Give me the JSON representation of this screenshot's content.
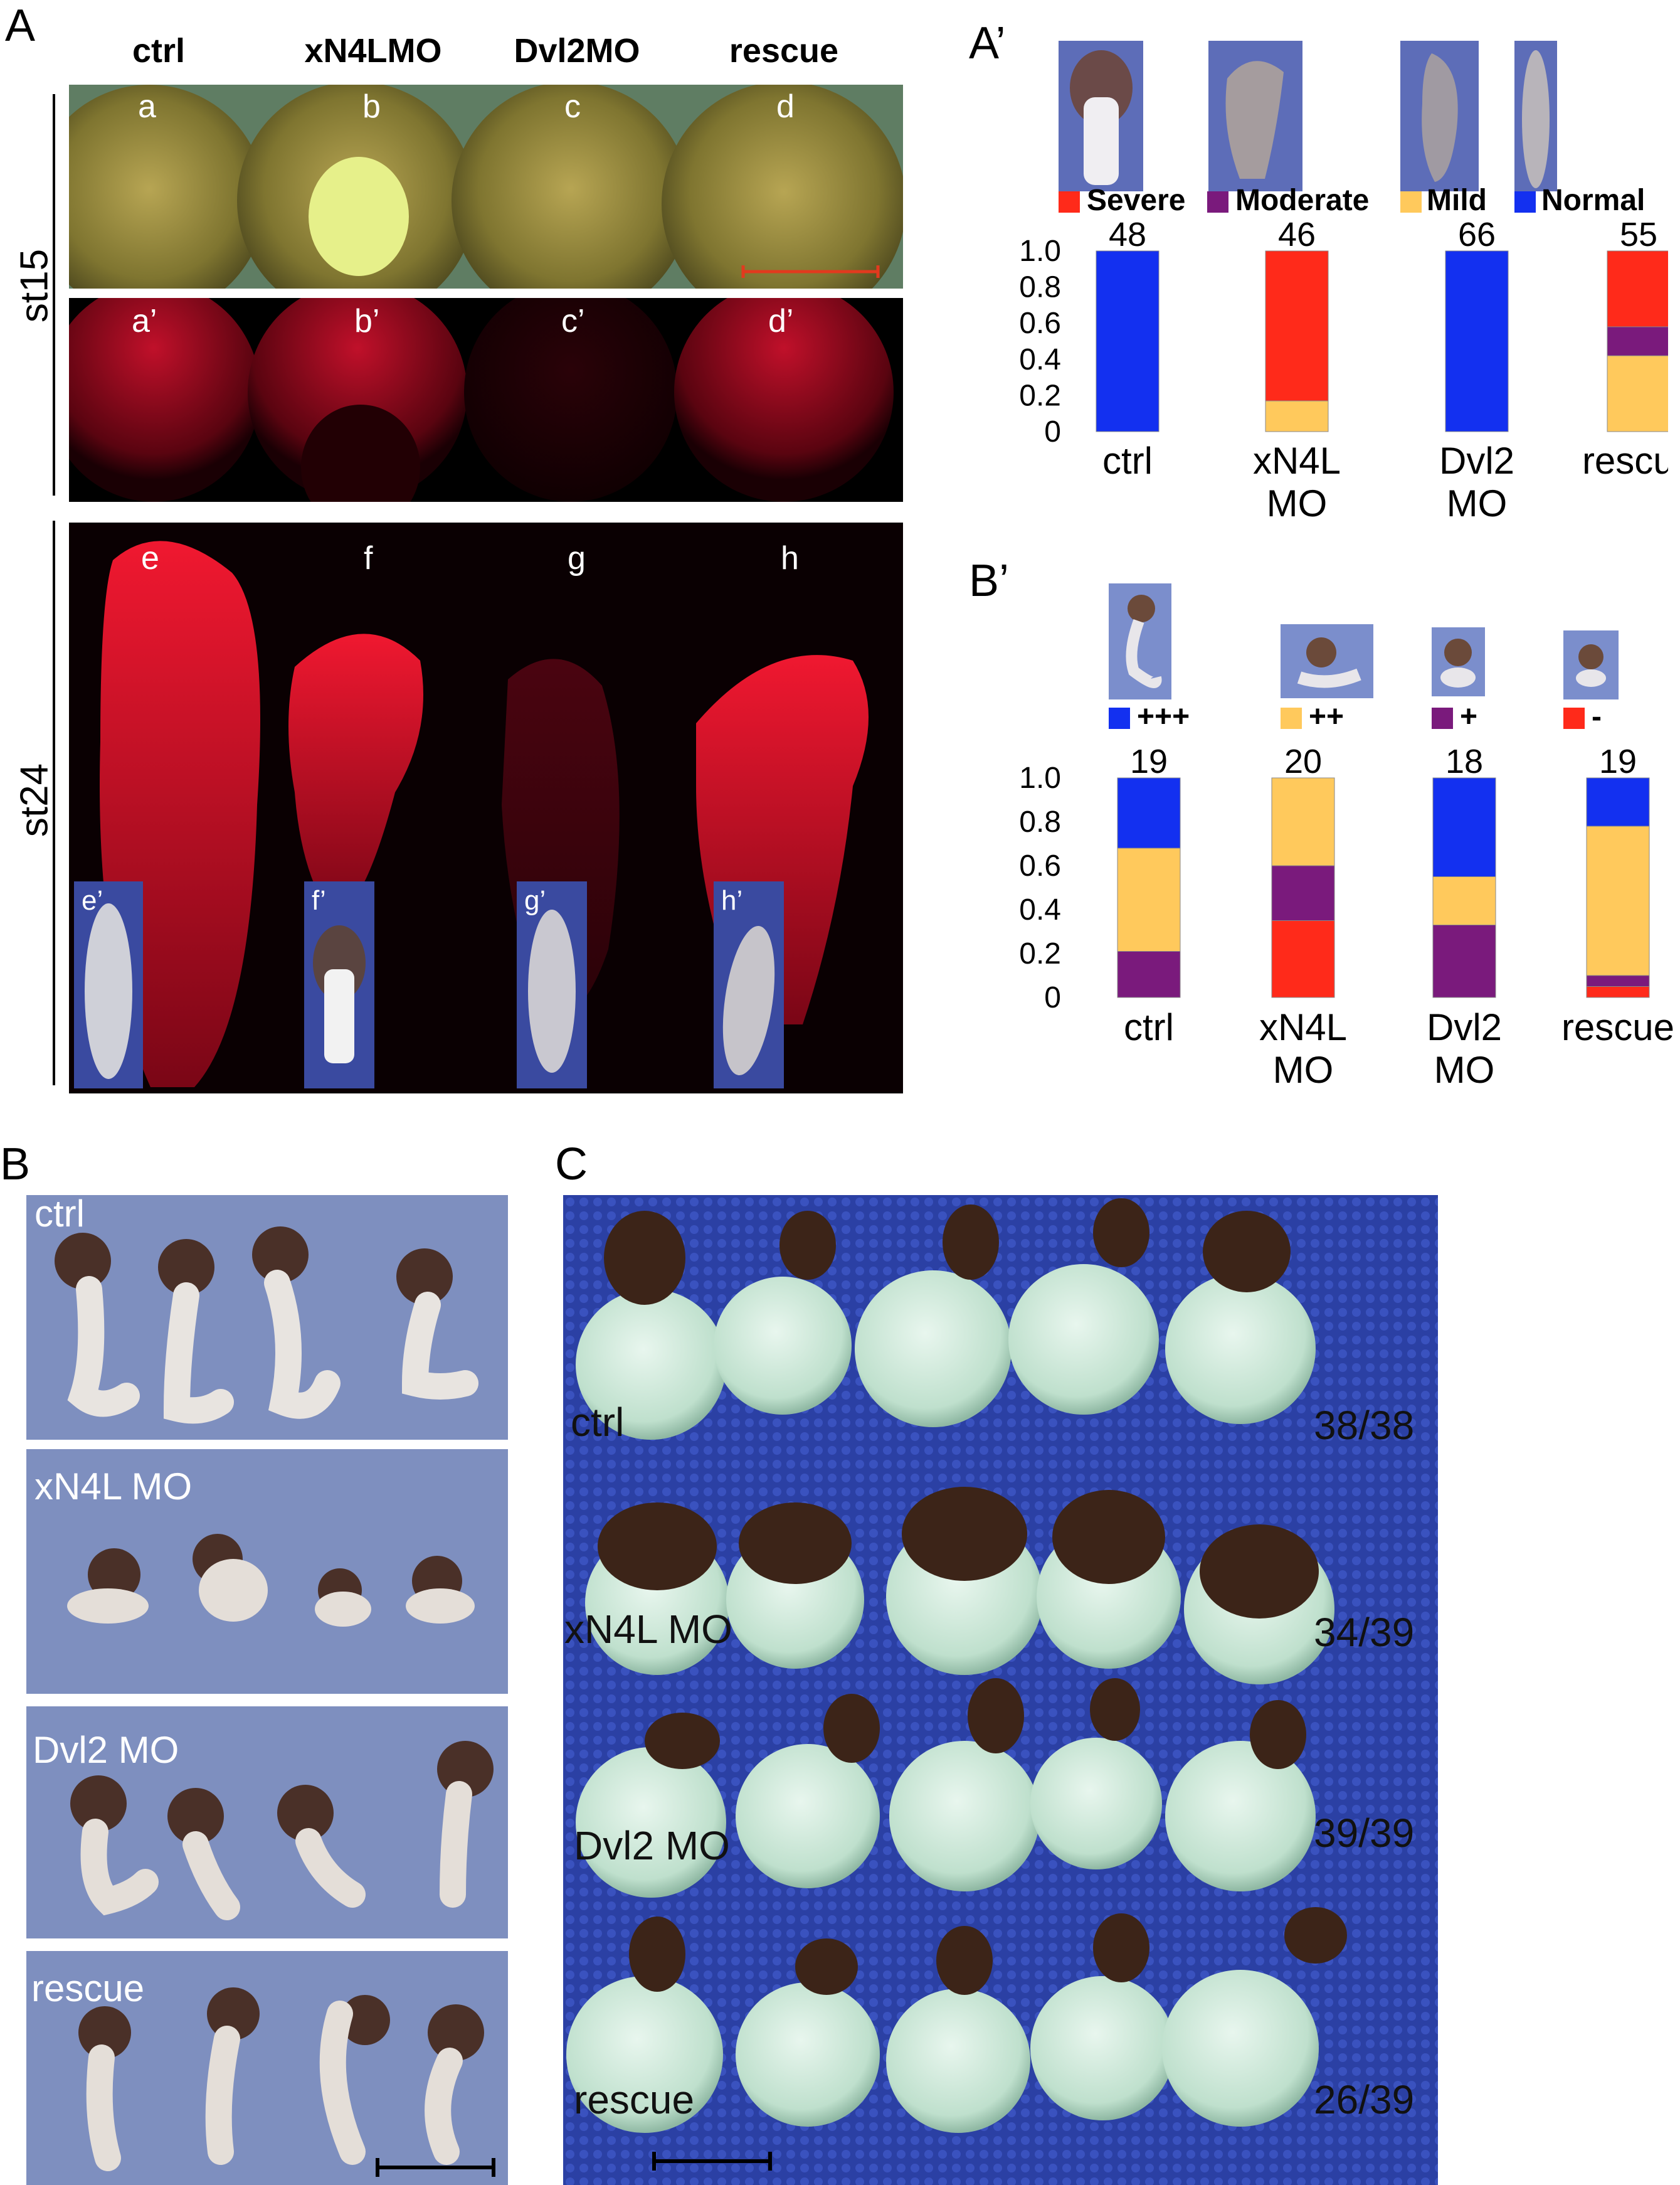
{
  "panel_letters": {
    "A": "A",
    "A_prime": "A’",
    "B_prime": "B’",
    "B": "B",
    "C": "C"
  },
  "panelA": {
    "columns": [
      "ctrl",
      "xN4LMO",
      "Dvl2MO",
      "rescue"
    ],
    "row_labels": {
      "st15": "st15",
      "st24": "st24"
    },
    "st15_letters": [
      "a",
      "b",
      "c",
      "d"
    ],
    "st15_fluor_letters": [
      "a’",
      "b’",
      "c’",
      "d’"
    ],
    "st24_letters": [
      "e",
      "f",
      "g",
      "h"
    ],
    "st24_inset_letters": [
      "e’",
      "f’",
      "g’",
      "h’"
    ],
    "colors": {
      "bright_field": "#6b6a2e",
      "fluor": "#e0102a",
      "scale_bar": "#e23a1e"
    }
  },
  "panelA_prime": {
    "legend": [
      "Severe",
      "Moderate",
      "Mild",
      "Normal"
    ],
    "legend_colors": [
      "#ff2a1a",
      "#7a1a7c",
      "#ffc95c",
      "#1330f0"
    ],
    "counts": [
      "48",
      "46",
      "66",
      "55"
    ],
    "categories": [
      "ctrl",
      "xN4L\nMO",
      "Dvl2\nMO",
      "rescue"
    ],
    "yticks": [
      "1.0",
      "0.8",
      "0.6",
      "0.4",
      "0.2",
      "0"
    ]
  },
  "panelB_prime": {
    "legend": [
      "+++",
      "++",
      "+",
      "-"
    ],
    "legend_colors": [
      "#1330f0",
      "#ffc95c",
      "#7a1a7c",
      "#ff2a1a"
    ],
    "counts": [
      "19",
      "20",
      "18",
      "19"
    ],
    "categories": [
      "ctrl",
      "xN4L\nMO",
      "Dvl2\nMO",
      "rescue"
    ],
    "yticks": [
      "1.0",
      "0.8",
      "0.6",
      "0.4",
      "0.2",
      "0"
    ]
  },
  "chart_data": [
    {
      "type": "bar",
      "stacked": true,
      "categories": [
        "ctrl",
        "xN4L MO",
        "Dvl2 MO",
        "rescue"
      ],
      "ylim": [
        0,
        1.0
      ],
      "series": [
        {
          "name": "Mild",
          "values": [
            0,
            0.17,
            0,
            0.42
          ]
        },
        {
          "name": "Moderate",
          "values": [
            0,
            0,
            0,
            0.16
          ]
        },
        {
          "name": "Severe",
          "values": [
            0,
            0.83,
            0,
            0.42
          ]
        },
        {
          "name": "Normal",
          "values": [
            1.0,
            0,
            1.0,
            0
          ]
        }
      ],
      "annotations": [
        "48",
        "46",
        "66",
        "55"
      ]
    },
    {
      "type": "bar",
      "stacked": true,
      "categories": [
        "ctrl",
        "xN4L MO",
        "Dvl2 MO",
        "rescue"
      ],
      "ylim": [
        0,
        1.0
      ],
      "series": [
        {
          "name": "-",
          "values": [
            0,
            0.35,
            0,
            0.05
          ]
        },
        {
          "name": "+",
          "values": [
            0.21,
            0.25,
            0.33,
            0.05
          ]
        },
        {
          "name": "++",
          "values": [
            0.47,
            0.4,
            0.22,
            0.68
          ]
        },
        {
          "name": "+++",
          "values": [
            0.32,
            0,
            0.45,
            0.22
          ]
        }
      ],
      "annotations": [
        "19",
        "20",
        "18",
        "19"
      ]
    }
  ],
  "panelB": {
    "groups": [
      "ctrl",
      "xN4L MO",
      "Dvl2 MO",
      "rescue"
    ]
  },
  "panelC": {
    "groups": [
      "ctrl",
      "xN4L MO",
      "Dvl2 MO",
      "rescue"
    ],
    "scores": [
      "38/38",
      "34/39",
      "39/39",
      "26/39"
    ]
  }
}
